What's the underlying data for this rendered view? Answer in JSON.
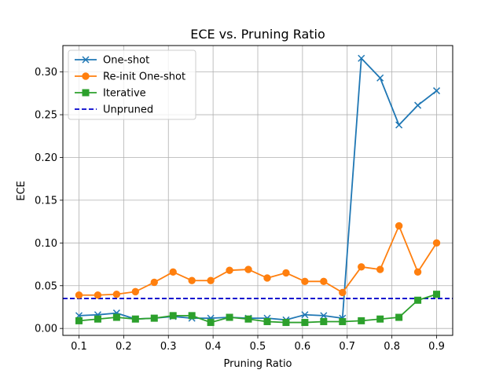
{
  "chart_data": {
    "type": "line",
    "title": "ECE vs. Pruning Ratio",
    "xlabel": "Pruning Ratio",
    "ylabel": "ECE",
    "xlim": [
      0.064,
      0.936
    ],
    "ylim": [
      -0.0081,
      0.3309
    ],
    "xticks": [
      0.1,
      0.2,
      0.3,
      0.4,
      0.5,
      0.6,
      0.7,
      0.8,
      0.9
    ],
    "xtick_labels": [
      "0.1",
      "0.2",
      "0.3",
      "0.4",
      "0.5",
      "0.6",
      "0.7",
      "0.8",
      "0.9"
    ],
    "yticks": [
      0.0,
      0.05,
      0.1,
      0.15,
      0.2,
      0.25,
      0.3
    ],
    "ytick_labels": [
      "0.00",
      "0.05",
      "0.10",
      "0.15",
      "0.20",
      "0.25",
      "0.30"
    ],
    "grid": true,
    "legend_position": "upper-left",
    "x": [
      0.1,
      0.1421,
      0.1842,
      0.2263,
      0.2684,
      0.3105,
      0.3526,
      0.3947,
      0.4368,
      0.4789,
      0.5211,
      0.5632,
      0.6053,
      0.6474,
      0.6895,
      0.7316,
      0.7737,
      0.8158,
      0.8579,
      0.9
    ],
    "series": [
      {
        "name": "One-shot",
        "color": "#1f77b4",
        "marker": "x",
        "linestyle": "solid",
        "values": [
          0.015,
          0.016,
          0.018,
          0.011,
          0.012,
          0.014,
          0.012,
          0.012,
          0.013,
          0.012,
          0.012,
          0.01,
          0.016,
          0.015,
          0.012,
          0.316,
          0.293,
          0.238,
          0.261,
          0.278
        ]
      },
      {
        "name": "Re-init One-shot",
        "color": "#ff7f0e",
        "marker": "circle",
        "linestyle": "solid",
        "values": [
          0.039,
          0.039,
          0.04,
          0.043,
          0.054,
          0.066,
          0.056,
          0.056,
          0.068,
          0.069,
          0.059,
          0.065,
          0.055,
          0.055,
          0.042,
          0.072,
          0.069,
          0.12,
          0.066,
          0.1
        ]
      },
      {
        "name": "Iterative",
        "color": "#2ca02c",
        "marker": "square",
        "linestyle": "solid",
        "values": [
          0.009,
          0.011,
          0.013,
          0.011,
          0.012,
          0.015,
          0.015,
          0.007,
          0.013,
          0.011,
          0.008,
          0.007,
          0.007,
          0.008,
          0.008,
          0.009,
          0.011,
          0.013,
          0.033,
          0.04
        ]
      },
      {
        "name": "Unpruned",
        "color": "#0000cc",
        "marker": "none",
        "linestyle": "dashed",
        "hline": 0.035
      }
    ]
  }
}
